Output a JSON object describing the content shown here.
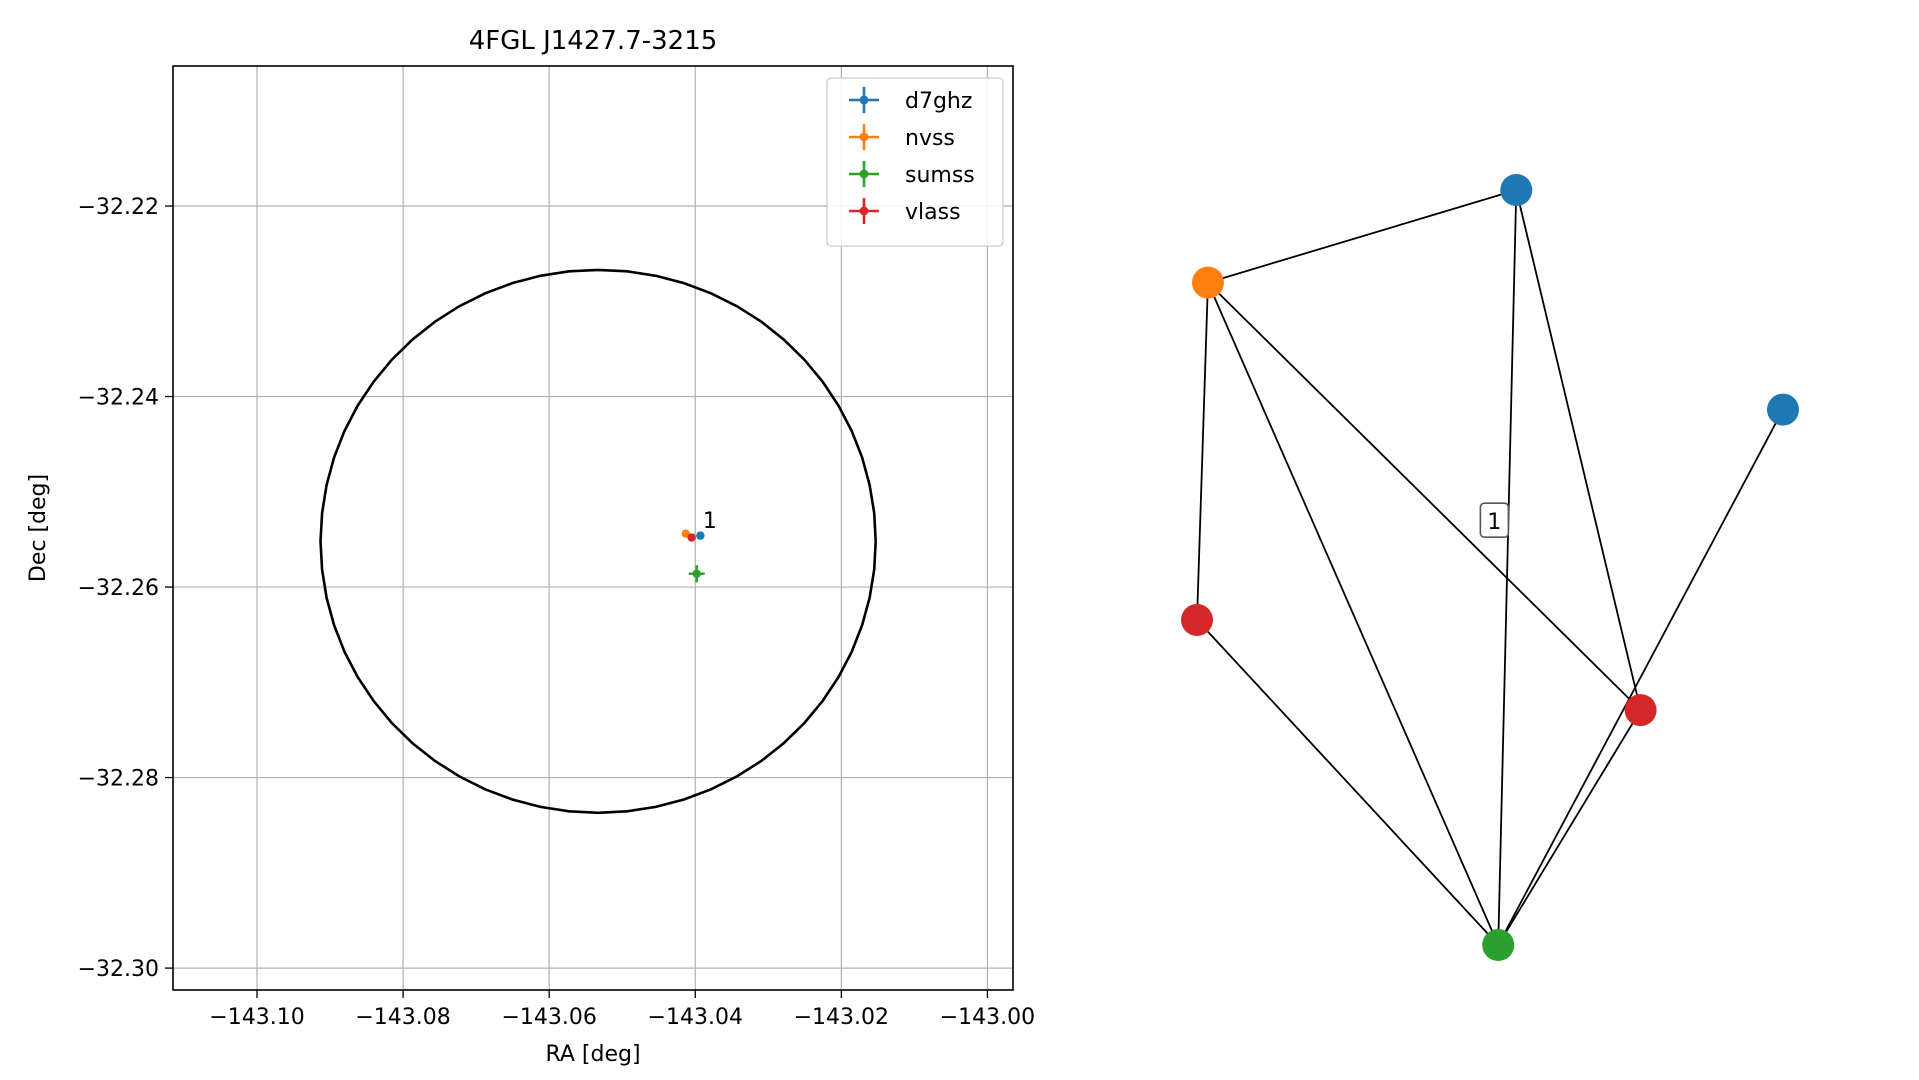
{
  "chart_data": [
    {
      "type": "scatter",
      "title": "4FGL J1427.7-3215",
      "xlabel": "RA [deg]",
      "ylabel": "Dec [deg]",
      "xlim": [
        -143.1115,
        -142.9965
      ],
      "ylim": [
        -32.3023,
        -32.2053
      ],
      "xticks": [
        -143.1,
        -143.08,
        -143.06,
        -143.04,
        -143.02,
        -143.0
      ],
      "xtick_labels": [
        "−143.10",
        "−143.08",
        "−143.06",
        "−143.04",
        "−143.02",
        "−143.00"
      ],
      "yticks": [
        -32.22,
        -32.24,
        -32.26,
        -32.28,
        -32.3
      ],
      "ytick_labels": [
        "−32.22",
        "−32.24",
        "−32.26",
        "−32.28",
        "−32.30"
      ],
      "grid": true,
      "legend_position": "top-right",
      "ellipse": {
        "center": [
          -143.0533,
          -32.2552
        ],
        "radius_ra": 0.038,
        "radius_dec": 0.0285
      },
      "series": [
        {
          "name": "d7ghz",
          "color": "#1f77b4",
          "points": [
            {
              "x": -143.0393,
              "y": -32.2546,
              "xerr": 0.0,
              "yerr": 0.0
            }
          ]
        },
        {
          "name": "nvss",
          "color": "#ff7f0e",
          "points": [
            {
              "x": -143.0413,
              "y": -32.2544,
              "xerr": 0.0,
              "yerr": 0.0
            }
          ]
        },
        {
          "name": "sumss",
          "color": "#2ca02c",
          "points": [
            {
              "x": -143.0398,
              "y": -32.2586,
              "xerr": 0.0011,
              "yerr": 0.0009
            }
          ]
        },
        {
          "name": "vlass",
          "color": "#d62728",
          "points": [
            {
              "x": -143.0405,
              "y": -32.2548,
              "xerr": 0.0,
              "yerr": 0.0
            }
          ]
        }
      ],
      "annotations": [
        {
          "text": "1",
          "x": -143.0395,
          "y": -32.254
        }
      ]
    },
    {
      "type": "network",
      "nodes": [
        {
          "id": "n0",
          "color": "#1f77b4",
          "x": 0.613,
          "y": 0.918
        },
        {
          "id": "n1",
          "color": "#ff7f0e",
          "x": 0.05,
          "y": 0.767
        },
        {
          "id": "n2",
          "color": "#1f77b4",
          "x": 1.1,
          "y": 0.56
        },
        {
          "id": "n3",
          "color": "#d62728",
          "x": 0.03,
          "y": 0.217
        },
        {
          "id": "n4",
          "color": "#d62728",
          "x": 0.84,
          "y": 0.07
        },
        {
          "id": "n5",
          "color": "#2ca02c",
          "x": 0.58,
          "y": -0.313
        }
      ],
      "edges": [
        [
          "n0",
          "n1"
        ],
        [
          "n0",
          "n5"
        ],
        [
          "n0",
          "n4"
        ],
        [
          "n1",
          "n3"
        ],
        [
          "n1",
          "n5"
        ],
        [
          "n1",
          "n4"
        ],
        [
          "n3",
          "n5"
        ],
        [
          "n4",
          "n5"
        ],
        [
          "n2",
          "n5"
        ]
      ],
      "cluster_labels": [
        {
          "text": "1",
          "x": 0.573,
          "y": 0.378
        }
      ]
    }
  ]
}
